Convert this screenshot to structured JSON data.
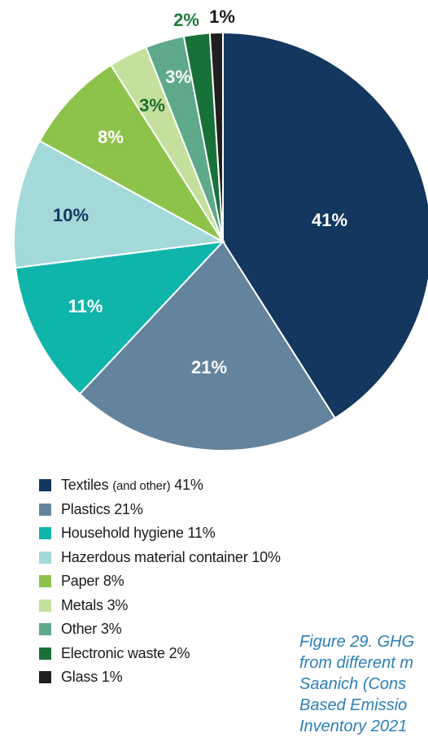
{
  "chart_data": {
    "type": "pie",
    "start_angle_deg": 0,
    "direction": "clockwise",
    "slices": [
      {
        "label": "41%",
        "value": 41,
        "color": "#13375e",
        "label_color": "#ffffff"
      },
      {
        "label": "21%",
        "value": 21,
        "color": "#64839d",
        "label_color": "#ffffff"
      },
      {
        "label": "11%",
        "value": 11,
        "color": "#0fb5ab",
        "label_color": "#ffffff"
      },
      {
        "label": "10%",
        "value": 10,
        "color": "#a3dad9",
        "label_color": "#13375e"
      },
      {
        "label": "8%",
        "value": 8,
        "color": "#8dc34a",
        "label_color": "#ffffff"
      },
      {
        "label": "3%",
        "value": 3,
        "color": "#c4e09c",
        "label_color": "#1f6b32"
      },
      {
        "label": "3%",
        "value": 3,
        "color": "#5ea98a",
        "label_color": "#ffffff"
      },
      {
        "label": "2%",
        "value": 2,
        "color": "#19713a",
        "label_color": "#1f7a3a"
      },
      {
        "label": "1%",
        "value": 1,
        "color": "#1f1f1f",
        "label_color": "#1a1a1a"
      }
    ]
  },
  "legend": [
    {
      "label": "Textiles",
      "note": "(and other)",
      "value": "41%",
      "color": "#13375e"
    },
    {
      "label": "Plastics 21%",
      "color": "#64839d"
    },
    {
      "label": "Household hygiene 11%",
      "color": "#0fb5ab"
    },
    {
      "label": "Hazerdous material container 10%",
      "color": "#a3dad9"
    },
    {
      "label": "Paper 8%",
      "color": "#8dc34a"
    },
    {
      "label": "Metals 3%",
      "color": "#c4e09c"
    },
    {
      "label": "Other 3%",
      "color": "#5ea98a"
    },
    {
      "label": "Electronic waste 2%",
      "color": "#19713a"
    },
    {
      "label": "Glass 1%",
      "color": "#1f1f1f"
    }
  ],
  "caption": {
    "line1": "Figure 29. GHG",
    "line2": "from different m",
    "line3": "Saanich (Cons",
    "line4": "Based Emissio",
    "line5": "Inventory 2021"
  }
}
